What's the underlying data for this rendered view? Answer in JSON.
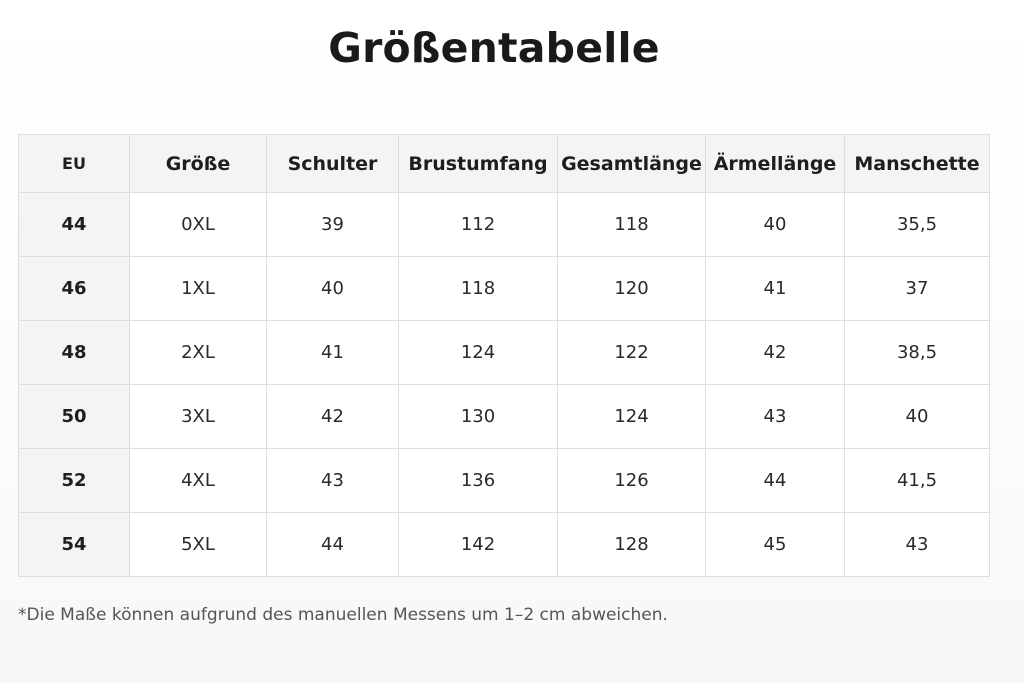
{
  "title": "Größentabelle",
  "table": {
    "headers": [
      "EU",
      "Größe",
      "Schulter",
      "Brustumfang",
      "Gesamtlänge",
      "Ärmellänge",
      "Manschette"
    ],
    "rows": [
      [
        "44",
        "0XL",
        "39",
        "112",
        "118",
        "40",
        "35,5"
      ],
      [
        "46",
        "1XL",
        "40",
        "118",
        "120",
        "41",
        "37"
      ],
      [
        "48",
        "2XL",
        "41",
        "124",
        "122",
        "42",
        "38,5"
      ],
      [
        "50",
        "3XL",
        "42",
        "130",
        "124",
        "43",
        "40"
      ],
      [
        "52",
        "4XL",
        "43",
        "136",
        "126",
        "44",
        "41,5"
      ],
      [
        "54",
        "5XL",
        "44",
        "142",
        "128",
        "45",
        "43"
      ]
    ]
  },
  "footnote": "*Die Maße können aufgrund des manuellen Messens um 1–2 cm abweichen."
}
